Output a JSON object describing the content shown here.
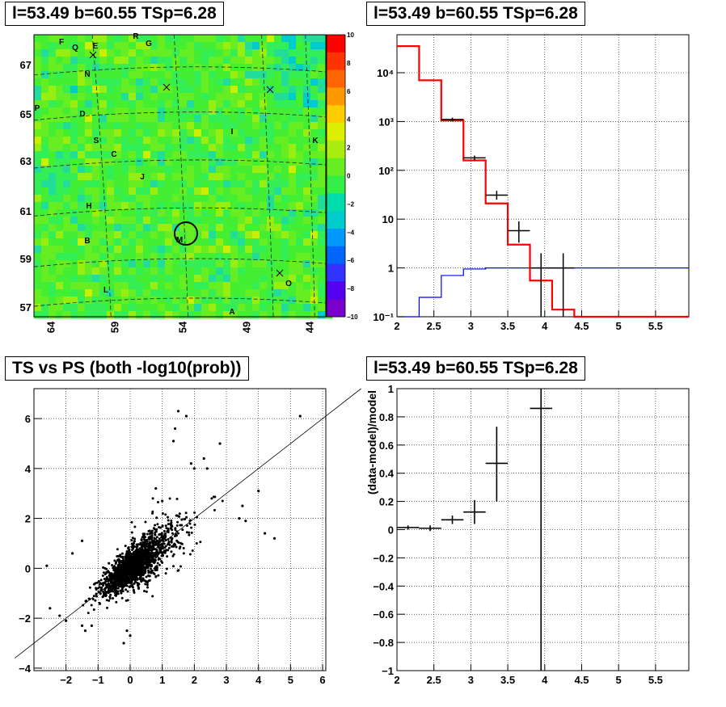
{
  "panels": {
    "skymap": {
      "title": "l=53.49 b=60.55 TSp=6.28"
    },
    "spectrum": {
      "title": "l=53.49 b=60.55 TSp=6.28"
    },
    "scatter": {
      "title": "TS vs PS (both -log10(prob))"
    },
    "residual": {
      "title": "l=53.49 b=60.55 TSp=6.28"
    }
  },
  "chart_data": [
    {
      "type": "heatmap",
      "title": "l=53.49 b=60.55 TSp=6.28",
      "x_ticks": [
        "64",
        "59",
        "54",
        "49",
        "44"
      ],
      "y_ticks": [
        "57",
        "59",
        "61",
        "63",
        "65",
        "67"
      ],
      "colorbar_ticks": [
        "10",
        "8",
        "6",
        "4",
        "2",
        "0",
        "−2",
        "−4",
        "−6",
        "−8",
        "−10"
      ],
      "zlim": [
        -10,
        10
      ],
      "source_labels": [
        "F",
        "Q",
        "E",
        "R",
        "G",
        "N",
        "P",
        "D",
        "S",
        "C",
        "I",
        "K",
        "J",
        "H",
        "M",
        "B",
        "L",
        "O",
        "A"
      ],
      "crosses": 4,
      "colors": {
        "background": "#33ee44",
        "mid": "#55dd33",
        "cool": "#22cccc",
        "warm": "#bbee22"
      }
    },
    {
      "type": "line",
      "title": "l=53.49 b=60.55 TSp=6.28",
      "log_y": true,
      "xlim": [
        2,
        5.95
      ],
      "ylim": [
        0.1,
        60000
      ],
      "x_ticks": [
        "2",
        "2.5",
        "3",
        "3.5",
        "4",
        "4.5",
        "5",
        "5.5"
      ],
      "y_ticks": [
        "10⁻¹",
        "1",
        "10",
        "10²",
        "10³",
        "10⁴"
      ],
      "grid": true,
      "series": [
        {
          "values_color": "#ff0000",
          "step_edges": [
            2,
            2.3,
            2.6,
            2.9,
            3.2,
            3.5,
            3.8,
            4.1,
            4.4,
            5.95
          ],
          "values": [
            35000,
            7000,
            1050,
            160,
            21,
            3,
            0.55,
            0.14,
            0.1
          ]
        },
        {
          "values_color": "#0000ff",
          "step_edges": [
            2,
            2.3,
            2.6,
            2.9,
            3.2,
            3.5,
            5.95
          ],
          "values": [
            0.1,
            0.25,
            0.7,
            0.95,
            1.0,
            1.0
          ]
        },
        {
          "values_color": "#000000",
          "points": [
            {
              "x": 2.75,
              "y": 1100,
              "xerr": 0.15,
              "ylo": 1000,
              "yhi": 1200
            },
            {
              "x": 3.05,
              "y": 180,
              "xerr": 0.15,
              "ylo": 160,
              "yhi": 200
            },
            {
              "x": 3.35,
              "y": 31,
              "xerr": 0.15,
              "ylo": 25,
              "yhi": 38
            },
            {
              "x": 3.65,
              "y": 5.8,
              "xerr": 0.15,
              "ylo": 3.3,
              "yhi": 9
            },
            {
              "x": 3.95,
              "y": 1.0,
              "xerr": 0.15,
              "ylo": 0.1,
              "yhi": 2.0
            },
            {
              "x": 4.25,
              "y": 1.0,
              "xerr": 0.15,
              "ylo": 0.1,
              "yhi": 2.0
            }
          ]
        }
      ]
    },
    {
      "type": "scatter",
      "title": "TS vs PS (both -log10(prob))",
      "xlim": [
        -3,
        6.1
      ],
      "ylim": [
        -4.1,
        7.2
      ],
      "x_ticks": [
        "−2",
        "−1",
        "0",
        "1",
        "2",
        "3",
        "4",
        "5",
        "6"
      ],
      "y_ticks": [
        "−4",
        "−2",
        "0",
        "2",
        "4",
        "6"
      ],
      "grid": true,
      "diagonal": {
        "slope": 1,
        "intercept": 0
      },
      "n_points": 1800,
      "outliers": [
        [
          5.3,
          6.1
        ],
        [
          1.5,
          6.3
        ],
        [
          1.75,
          6.1
        ],
        [
          2.8,
          5.0
        ],
        [
          1.4,
          5.6
        ],
        [
          1.35,
          5.1
        ],
        [
          2.3,
          4.4
        ],
        [
          1.9,
          4.2
        ],
        [
          2.0,
          4.0
        ],
        [
          2.4,
          4.0
        ],
        [
          4.0,
          3.1
        ],
        [
          3.5,
          2.5
        ],
        [
          3.4,
          2.0
        ],
        [
          3.6,
          1.9
        ],
        [
          4.5,
          1.2
        ],
        [
          4.2,
          1.4
        ],
        [
          -2.2,
          -1.9
        ],
        [
          -2.5,
          -1.6
        ],
        [
          -2.0,
          -2.1
        ],
        [
          -1.5,
          -2.3
        ],
        [
          -1.4,
          -2.5
        ],
        [
          -1.2,
          -2.3
        ],
        [
          -0.2,
          -3.0
        ],
        [
          -0.1,
          -2.5
        ],
        [
          0.0,
          -2.7
        ],
        [
          -2.6,
          0.1
        ],
        [
          -1.8,
          0.6
        ],
        [
          -1.5,
          1.1
        ],
        [
          0.8,
          3.2
        ],
        [
          1.0,
          2.7
        ]
      ]
    },
    {
      "type": "line",
      "title": "l=53.49 b=60.55 TSp=6.28",
      "xlim": [
        2,
        5.95
      ],
      "ylim": [
        -1,
        1
      ],
      "x_ticks": [
        "2",
        "2.5",
        "3",
        "3.5",
        "4",
        "4.5",
        "5",
        "5.5"
      ],
      "y_ticks": [
        "−1",
        "−0.8",
        "−0.6",
        "−0.4",
        "−0.2",
        "0",
        "0.2",
        "0.4",
        "0.6",
        "0.8",
        "1"
      ],
      "ylabel": "(data-model)/model",
      "grid": true,
      "points": [
        {
          "x": 2.15,
          "y": 0.015,
          "xerr": 0.15,
          "ylo": 0.0,
          "yhi": 0.03
        },
        {
          "x": 2.45,
          "y": 0.01,
          "xerr": 0.15,
          "ylo": -0.01,
          "yhi": 0.03
        },
        {
          "x": 2.75,
          "y": 0.07,
          "xerr": 0.15,
          "ylo": 0.04,
          "yhi": 0.1
        },
        {
          "x": 3.05,
          "y": 0.125,
          "xerr": 0.15,
          "ylo": 0.04,
          "yhi": 0.21
        },
        {
          "x": 3.35,
          "y": 0.47,
          "xerr": 0.15,
          "ylo": 0.2,
          "yhi": 0.73
        },
        {
          "x": 3.95,
          "y": 0.86,
          "xerr": 0.15,
          "ylo": -1.0,
          "yhi": 1.0
        }
      ]
    }
  ]
}
